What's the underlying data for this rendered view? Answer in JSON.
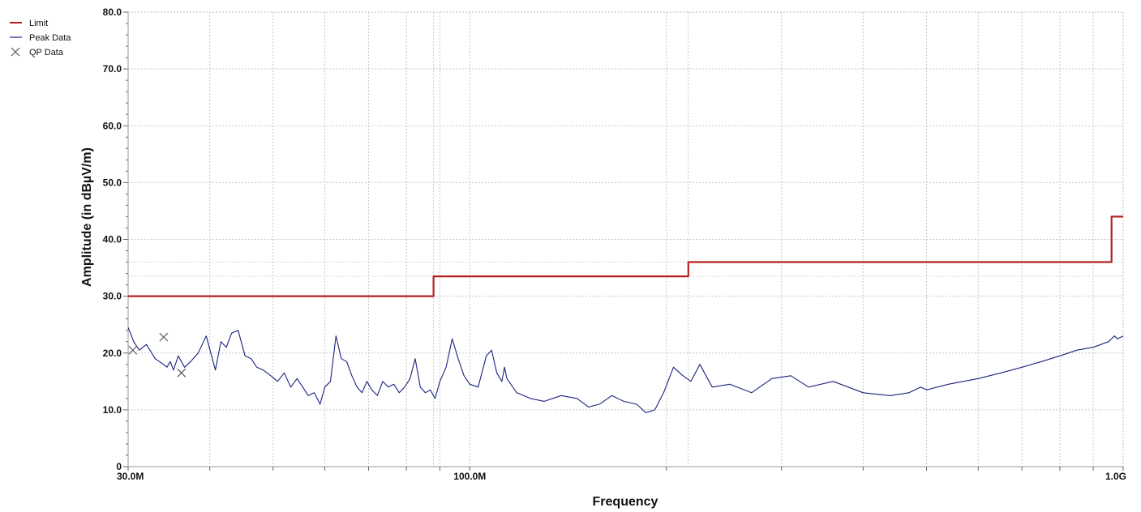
{
  "chart_data": {
    "type": "line",
    "xlabel": "Frequency",
    "ylabel": "Amplitude (in dBµV/m)",
    "x_scale": "log",
    "xlim": [
      30,
      1000
    ],
    "ylim": [
      0,
      80
    ],
    "grid": true,
    "legend_position": "top-left",
    "x_ticks": [
      {
        "value": 30,
        "label": "30.0M"
      },
      {
        "value": 100,
        "label": "100.0M"
      },
      {
        "value": 1000,
        "label": "1.0G"
      }
    ],
    "y_ticks": [
      {
        "value": 0,
        "label": "0"
      },
      {
        "value": 10,
        "label": "10.0"
      },
      {
        "value": 20,
        "label": "20.0"
      },
      {
        "value": 30,
        "label": "30.0"
      },
      {
        "value": 40,
        "label": "40.0"
      },
      {
        "value": 50,
        "label": "50.0"
      },
      {
        "value": 60,
        "label": "60.0"
      },
      {
        "value": 70,
        "label": "70.0"
      },
      {
        "value": 80,
        "label": "80.0"
      }
    ],
    "series": [
      {
        "name": "Limit",
        "color": "#b22222",
        "style": "step",
        "x": [
          30,
          88,
          88,
          216,
          216,
          960,
          960,
          1000
        ],
        "y": [
          30,
          30,
          33.5,
          33.5,
          36,
          36,
          44,
          44
        ]
      },
      {
        "name": "Peak Data",
        "color": "#1a237e",
        "style": "line",
        "x": [
          30,
          30.6,
          31.2,
          32,
          33,
          34,
          34.4,
          34.8,
          35.2,
          35.8,
          36.6,
          37.4,
          38.4,
          39.5,
          40.8,
          41.6,
          42.4,
          43.2,
          44.2,
          45.3,
          46.3,
          47.2,
          48.3,
          49.6,
          50.8,
          52.0,
          53.2,
          54.4,
          55.5,
          56.6,
          57.8,
          59.0,
          60.0,
          61.2,
          62.4,
          63.6,
          64.8,
          66.0,
          67.2,
          68.4,
          69.6,
          70.8,
          72.2,
          73.6,
          75.0,
          76.5,
          78.0,
          79.5,
          81.0,
          82.5,
          84.0,
          85.5,
          87.0,
          88.5,
          90.0,
          92.0,
          94.0,
          96.0,
          98.0,
          100.0,
          103.0,
          106.0,
          108.0,
          110.0,
          112.0,
          113.0,
          114.0,
          118.0,
          124.0,
          130.0,
          138.0,
          146.0,
          152.0,
          158.0,
          165.0,
          172.0,
          180.0,
          186.0,
          192.0,
          198.0,
          205.0,
          212.0,
          218.0,
          225.0,
          235.0,
          250.0,
          270.0,
          290.0,
          310.0,
          330.0,
          360.0,
          400.0,
          440.0,
          470.0,
          480.0,
          490.0,
          500.0,
          540.0,
          600.0,
          650.0,
          700.0,
          750.0,
          800.0,
          850.0,
          900.0,
          950.0,
          970.0,
          980.0,
          1000.0
        ],
        "y": [
          24.5,
          22.0,
          20.5,
          21.5,
          19.0,
          18.0,
          17.5,
          18.5,
          17.0,
          19.5,
          17.5,
          18.5,
          20.0,
          23.0,
          17.0,
          22.0,
          21.0,
          23.5,
          24.0,
          19.5,
          19.0,
          17.5,
          17.0,
          16.0,
          15.0,
          16.5,
          14.0,
          15.5,
          14.0,
          12.5,
          13.0,
          11.0,
          14.0,
          15.0,
          23.0,
          19.0,
          18.5,
          16.0,
          14.0,
          13.0,
          15.0,
          13.5,
          12.5,
          15.0,
          14.0,
          14.5,
          13.0,
          14.0,
          15.5,
          19.0,
          14.0,
          13.0,
          13.5,
          12.0,
          15.0,
          17.5,
          22.5,
          19.0,
          16.0,
          14.5,
          14.0,
          19.5,
          20.5,
          16.5,
          15.0,
          17.5,
          15.5,
          13.0,
          12.0,
          11.5,
          12.5,
          12.0,
          10.5,
          11.0,
          12.5,
          11.5,
          11.0,
          9.5,
          10.0,
          13.0,
          17.5,
          16.0,
          15.0,
          18.0,
          14.0,
          14.5,
          13.0,
          15.5,
          16.0,
          14.0,
          15.0,
          13.0,
          12.5,
          13.0,
          13.5,
          14.0,
          13.5,
          14.5,
          15.5,
          16.5,
          17.5,
          18.5,
          19.5,
          20.5,
          21.0,
          22.0,
          23.0,
          22.5,
          23.0
        ]
      },
      {
        "name": "QP Data",
        "color": "#555555",
        "style": "marker-x",
        "x": [
          30.5,
          34.0,
          36.2
        ],
        "y": [
          20.5,
          22.8,
          16.5
        ]
      }
    ]
  }
}
